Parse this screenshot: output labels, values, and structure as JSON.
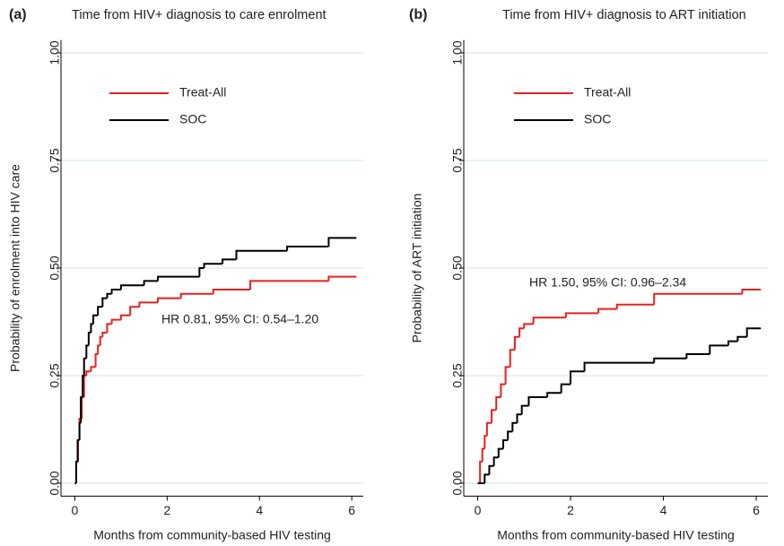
{
  "chart_data": [
    {
      "type": "line",
      "step": "post",
      "panel_label": "(a)",
      "title": "Time from HIV+ diagnosis to care enrolment",
      "xlabel": "Months from community-based HIV testing",
      "ylabel": "Probability of enrolment into HIV care",
      "xlim": [
        -0.3,
        6.25
      ],
      "xticks": [
        0,
        2,
        4,
        6
      ],
      "ylim": [
        -0.03,
        1.03
      ],
      "yticks": [
        {
          "value": 0,
          "label": "0.00"
        },
        {
          "value": 0.25,
          "label": "0.25"
        },
        {
          "value": 0.5,
          "label": "0.50"
        },
        {
          "value": 0.75,
          "label": "0.75"
        },
        {
          "value": 1,
          "label": "1.00"
        }
      ],
      "grid": true,
      "annotation": "HR 0.81, 95% CI: 0.54–1.20",
      "annotation_color": "#e8211f",
      "series": [
        {
          "name": "Treat-All",
          "color": "#e8211f",
          "x": [
            0,
            0.03,
            0.07,
            0.1,
            0.15,
            0.2,
            0.25,
            0.35,
            0.45,
            0.5,
            0.55,
            0.6,
            0.7,
            0.8,
            1.0,
            1.2,
            1.4,
            1.8,
            2.3,
            3.0,
            3.8,
            5.5,
            6.1
          ],
          "values": [
            0,
            0.05,
            0.1,
            0.15,
            0.2,
            0.25,
            0.26,
            0.27,
            0.3,
            0.32,
            0.34,
            0.35,
            0.37,
            0.38,
            0.39,
            0.41,
            0.42,
            0.43,
            0.44,
            0.45,
            0.47,
            0.48,
            0.48
          ]
        },
        {
          "name": "SOC",
          "color": "#000000",
          "x": [
            0,
            0.03,
            0.06,
            0.1,
            0.13,
            0.17,
            0.2,
            0.25,
            0.3,
            0.35,
            0.4,
            0.5,
            0.6,
            0.7,
            0.8,
            1.0,
            1.5,
            1.8,
            2.7,
            2.8,
            3.2,
            3.5,
            4.6,
            5.5,
            6.1
          ],
          "values": [
            0,
            0.05,
            0.1,
            0.14,
            0.2,
            0.25,
            0.29,
            0.32,
            0.35,
            0.37,
            0.39,
            0.41,
            0.43,
            0.44,
            0.45,
            0.46,
            0.47,
            0.48,
            0.5,
            0.51,
            0.52,
            0.54,
            0.55,
            0.57,
            0.57
          ]
        }
      ]
    },
    {
      "type": "line",
      "step": "post",
      "panel_label": "(b)",
      "title": "Time from HIV+ diagnosis to ART initiation",
      "xlabel": "Months from community-based HIV testing",
      "ylabel": "Probability of ART initiation",
      "xlim": [
        -0.3,
        6.25
      ],
      "xticks": [
        0,
        2,
        4,
        6
      ],
      "ylim": [
        -0.03,
        1.03
      ],
      "yticks": [
        {
          "value": 0,
          "label": "0.00"
        },
        {
          "value": 0.25,
          "label": "0.25"
        },
        {
          "value": 0.5,
          "label": "0.50"
        },
        {
          "value": 0.75,
          "label": "0.75"
        },
        {
          "value": 1,
          "label": "1.00"
        }
      ],
      "grid": true,
      "annotation": "HR 1.50, 95% CI: 0.96–2.34",
      "annotation_color": "#e8211f",
      "series": [
        {
          "name": "Treat-All",
          "color": "#e8211f",
          "x": [
            0,
            0.05,
            0.1,
            0.15,
            0.2,
            0.3,
            0.4,
            0.5,
            0.6,
            0.7,
            0.8,
            0.9,
            1.0,
            1.2,
            1.9,
            2.6,
            3.0,
            3.8,
            5.7,
            6.1
          ],
          "values": [
            0,
            0.05,
            0.08,
            0.11,
            0.14,
            0.17,
            0.2,
            0.23,
            0.27,
            0.31,
            0.34,
            0.36,
            0.37,
            0.385,
            0.395,
            0.405,
            0.415,
            0.44,
            0.45,
            0.45
          ]
        },
        {
          "name": "SOC",
          "color": "#000000",
          "x": [
            0,
            0.15,
            0.25,
            0.35,
            0.45,
            0.55,
            0.65,
            0.75,
            0.85,
            0.95,
            1.1,
            1.5,
            1.8,
            2.0,
            2.3,
            3.8,
            4.5,
            5.0,
            5.4,
            5.6,
            5.8,
            6.1
          ],
          "values": [
            0,
            0.02,
            0.04,
            0.06,
            0.08,
            0.1,
            0.12,
            0.14,
            0.16,
            0.18,
            0.2,
            0.21,
            0.23,
            0.26,
            0.28,
            0.29,
            0.3,
            0.32,
            0.33,
            0.34,
            0.36,
            0.36
          ]
        }
      ]
    }
  ]
}
